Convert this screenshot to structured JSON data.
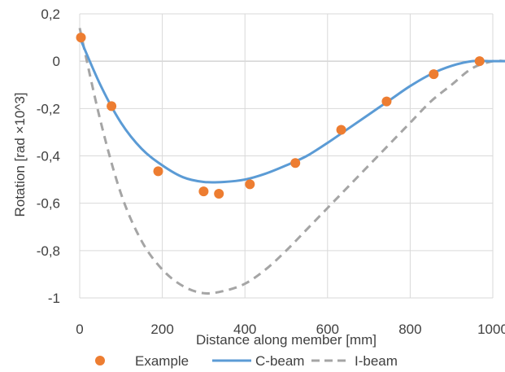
{
  "chart_data": {
    "type": "line",
    "xlabel": "Distance along member [mm]",
    "ylabel": "Rotation [rad ×10^3]",
    "xlim": [
      0,
      1000
    ],
    "ylim": [
      -1,
      0.2
    ],
    "x_ticks": [
      "0",
      "200",
      "400",
      "600",
      "800",
      "1000"
    ],
    "y_ticks": [
      "0,2",
      "0",
      "-0,2",
      "-0,4",
      "-0,6",
      "-0,8",
      "-1"
    ],
    "x_tick_values": [
      0,
      200,
      400,
      600,
      800,
      1000
    ],
    "y_tick_values": [
      0.2,
      0,
      -0.2,
      -0.4,
      -0.6,
      -0.8,
      -1
    ],
    "grid": true,
    "legend_position": "bottom",
    "series": [
      {
        "name": "Example",
        "style": "markers",
        "color": "#ED7D31",
        "x": [
          3,
          77,
          190,
          300,
          337,
          412,
          522,
          633,
          743,
          857,
          968
        ],
        "y": [
          0.1,
          -0.19,
          -0.465,
          -0.55,
          -0.56,
          -0.52,
          -0.43,
          -0.29,
          -0.17,
          -0.055,
          0
        ]
      },
      {
        "name": "C-beam",
        "style": "solid",
        "color": "#5B9BD5",
        "x": [
          0,
          50,
          100,
          150,
          200,
          250,
          300,
          350,
          400,
          450,
          500,
          550,
          600,
          650,
          700,
          750,
          800,
          850,
          900,
          950,
          1000,
          1030
        ],
        "y": [
          0.1,
          -0.1,
          -0.26,
          -0.37,
          -0.44,
          -0.49,
          -0.51,
          -0.51,
          -0.5,
          -0.475,
          -0.44,
          -0.4,
          -0.345,
          -0.285,
          -0.225,
          -0.165,
          -0.105,
          -0.055,
          -0.02,
          0,
          0,
          0
        ]
      },
      {
        "name": "I-beam",
        "style": "dashed",
        "color": "#A5A5A5",
        "x": [
          0,
          50,
          100,
          150,
          200,
          250,
          300,
          350,
          400,
          450,
          500,
          550,
          600,
          650,
          700,
          750,
          800,
          850,
          900,
          950,
          1000,
          1030
        ],
        "y": [
          0.14,
          -0.25,
          -0.56,
          -0.76,
          -0.88,
          -0.95,
          -0.98,
          -0.97,
          -0.94,
          -0.88,
          -0.8,
          -0.71,
          -0.62,
          -0.53,
          -0.44,
          -0.35,
          -0.26,
          -0.17,
          -0.1,
          -0.03,
          0,
          0
        ]
      }
    ]
  }
}
